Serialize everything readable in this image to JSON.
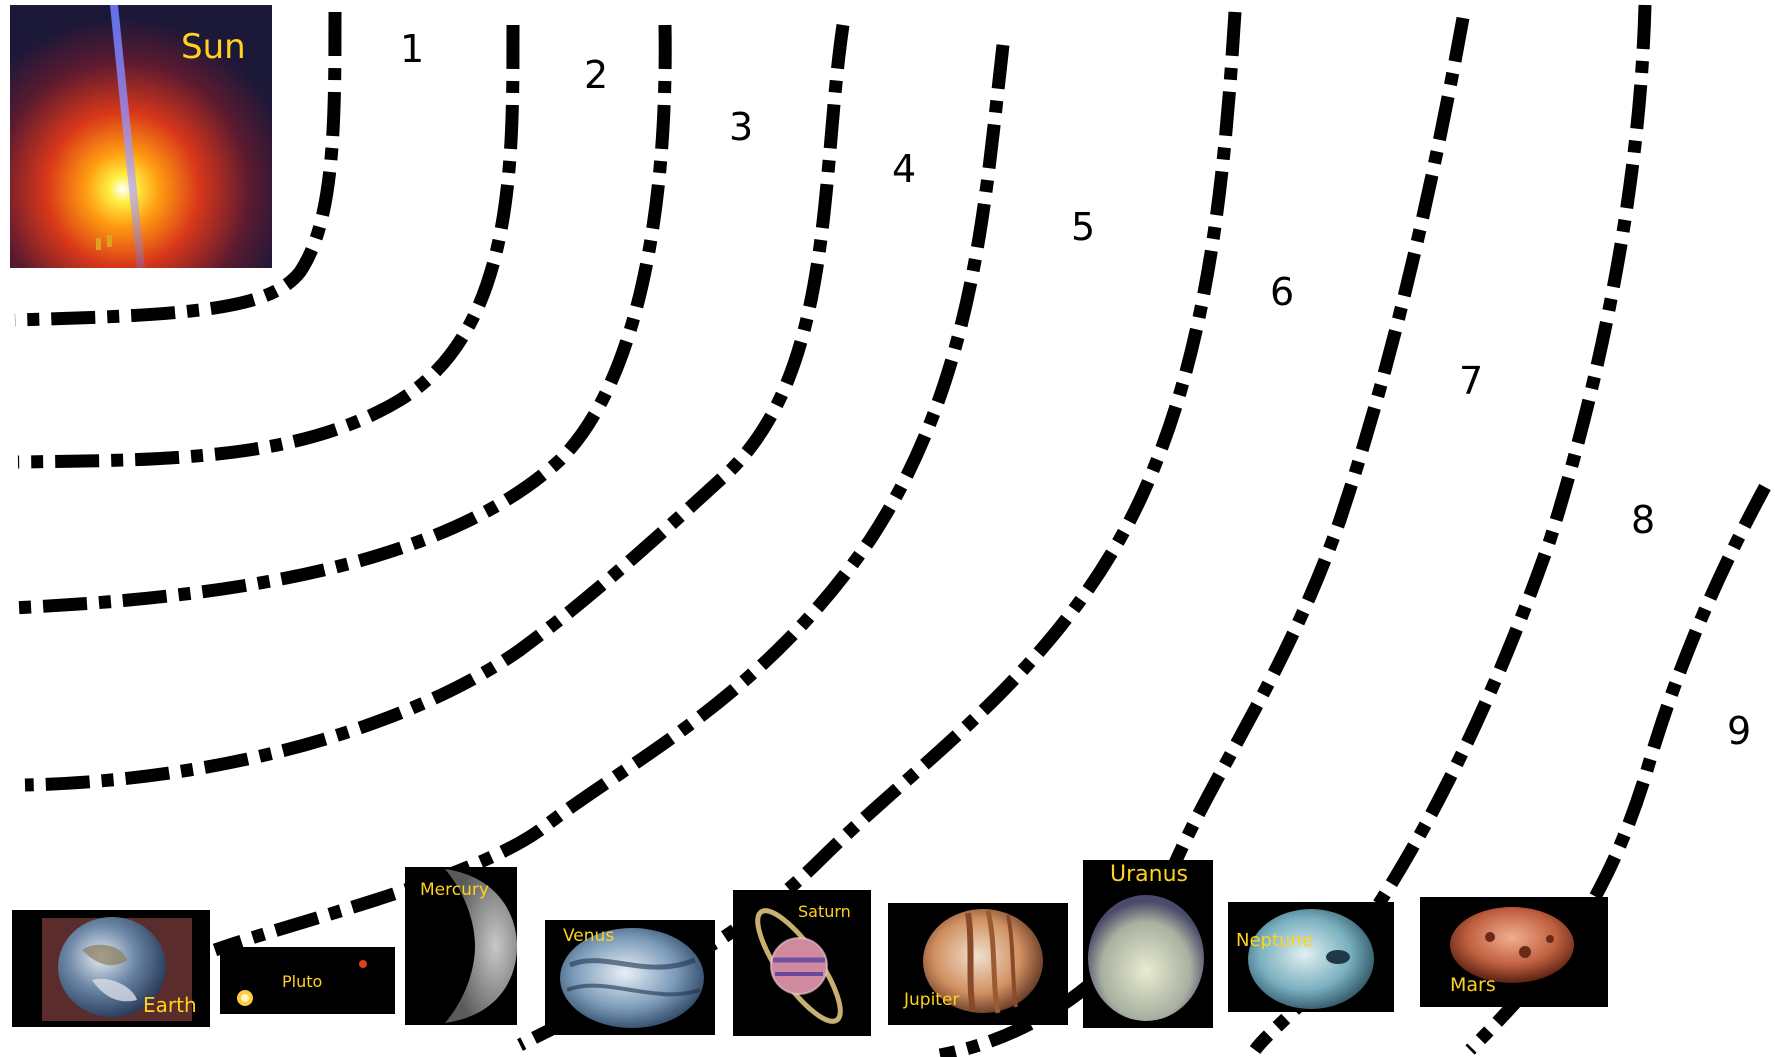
{
  "sun": {
    "label": "Sun"
  },
  "orbit_numbers": [
    "1",
    "2",
    "3",
    "4",
    "5",
    "6",
    "7",
    "8",
    "9"
  ],
  "planets": {
    "earth": "Earth",
    "pluto": "Pluto",
    "mercury": "Mercury",
    "venus": "Venus",
    "saturn": "Saturn",
    "jupiter": "Jupiter",
    "uranus": "Uranus",
    "neptune": "Neptune",
    "mars": "Mars"
  },
  "colors": {
    "label": "#ffd21f",
    "orbit_line": "#000000",
    "tile_background": "#000000"
  }
}
